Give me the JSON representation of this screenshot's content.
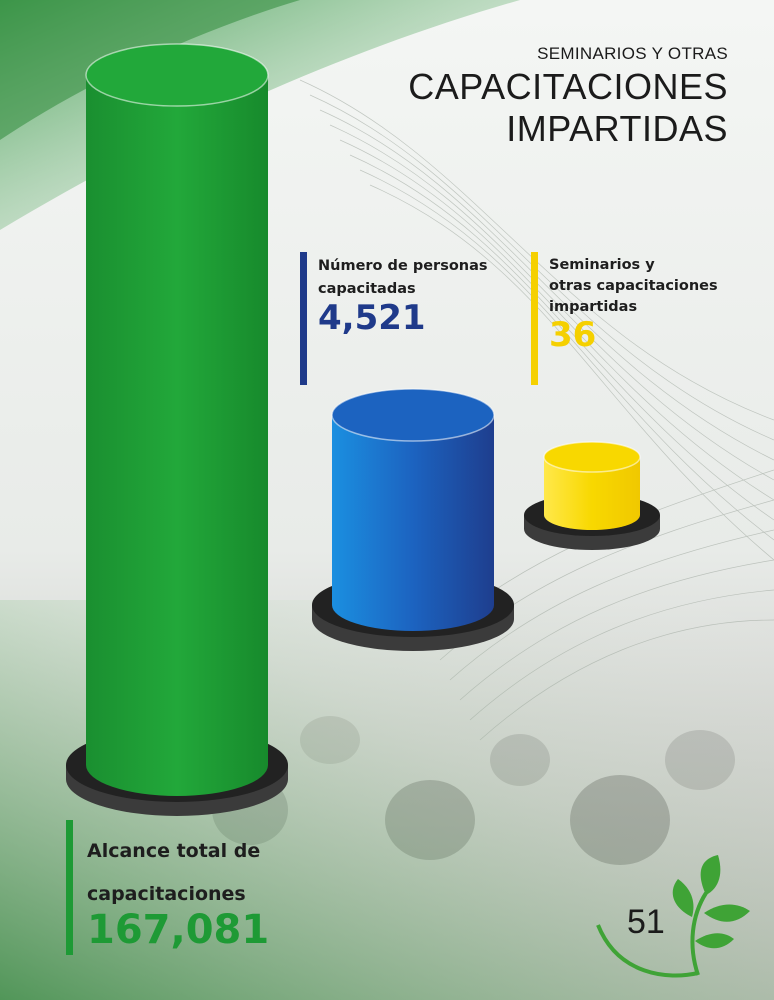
{
  "header": {
    "subtitle": "SEMINARIOS Y OTRAS",
    "title_line1": "CAPACITACIONES",
    "title_line2": "IMPARTIDAS"
  },
  "stats": {
    "personas": {
      "label_line1": "Número de personas",
      "label_line2": "capacitadas",
      "value": "4,521"
    },
    "seminarios": {
      "label_line1": "Seminarios y",
      "label_line2": "otras capacitaciones",
      "label_line3": "impartidas",
      "value": "36"
    },
    "alcance": {
      "label_line1": "Alcance total de",
      "label_line2": "capacitaciones",
      "value": "167,081"
    }
  },
  "page_number": "51",
  "colors": {
    "green": "#1e9a35",
    "blue": "#1f3a8a",
    "yellow": "#f5d000"
  },
  "icons": [
    "leaf-sprout-icon"
  ],
  "chart_data": {
    "type": "bar",
    "categories": [
      "Alcance total de capacitaciones",
      "Número de personas capacitadas",
      "Seminarios y otras capacitaciones impartidas"
    ],
    "values": [
      167081,
      4521,
      36
    ],
    "colors": [
      "#1e9a35",
      "#1f3a8a",
      "#f5d000"
    ]
  }
}
